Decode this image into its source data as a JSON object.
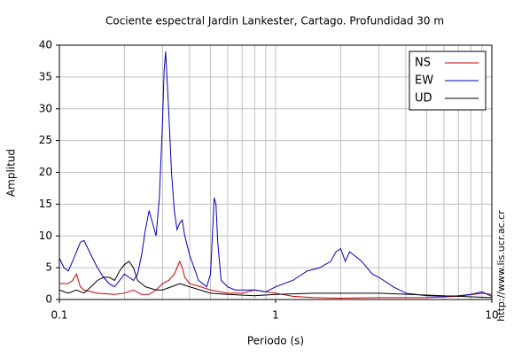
{
  "chart_data": {
    "type": "line",
    "title": "Cociente espectral Jardin Lankester, Cartago. Profundidad 30 m",
    "xlabel": "Periodo (s)",
    "ylabel": "Amplitud",
    "annotation": "http://www.lis.ucr.ac.cr",
    "xscale": "log",
    "grid": true,
    "legend": "upper right",
    "xlim": [
      0.1,
      10
    ],
    "xticks": [
      0.1,
      1,
      10
    ],
    "xminorticks": [
      0.2,
      0.3,
      0.4,
      0.5,
      0.6,
      0.7,
      0.8,
      0.9,
      2,
      3,
      4,
      5,
      6,
      7,
      8,
      9
    ],
    "ylim": [
      0,
      40
    ],
    "yticks": [
      0,
      5,
      10,
      15,
      20,
      25,
      30,
      35,
      40
    ],
    "series": [
      {
        "name": "NS",
        "color": "#cc0000",
        "x": [
          0.1,
          0.11,
          0.115,
          0.12,
          0.125,
          0.13,
          0.15,
          0.18,
          0.2,
          0.22,
          0.24,
          0.26,
          0.28,
          0.3,
          0.32,
          0.34,
          0.35,
          0.36,
          0.37,
          0.38,
          0.4,
          0.45,
          0.5,
          0.6,
          0.7,
          0.8,
          1,
          1.2,
          1.5,
          2,
          3,
          5,
          7,
          9,
          10
        ],
        "values": [
          2.5,
          2.5,
          3,
          4,
          2,
          1.5,
          1,
          0.8,
          1,
          1.5,
          0.8,
          0.8,
          1.5,
          2.5,
          3,
          4,
          5,
          6,
          5,
          3.5,
          2.5,
          2,
          1.5,
          1,
          1,
          1.5,
          1,
          0.5,
          0.3,
          0.2,
          0.3,
          0.3,
          0.5,
          1,
          0.8
        ]
      },
      {
        "name": "EW",
        "color": "#0000bb",
        "x": [
          0.1,
          0.105,
          0.11,
          0.115,
          0.12,
          0.125,
          0.13,
          0.14,
          0.15,
          0.16,
          0.17,
          0.18,
          0.19,
          0.2,
          0.21,
          0.22,
          0.23,
          0.24,
          0.25,
          0.26,
          0.27,
          0.28,
          0.29,
          0.3,
          0.305,
          0.31,
          0.32,
          0.33,
          0.34,
          0.35,
          0.36,
          0.37,
          0.38,
          0.4,
          0.42,
          0.44,
          0.46,
          0.48,
          0.5,
          0.51,
          0.52,
          0.53,
          0.54,
          0.56,
          0.6,
          0.65,
          0.7,
          0.8,
          0.9,
          1,
          1.2,
          1.4,
          1.6,
          1.8,
          1.9,
          2,
          2.1,
          2.2,
          2.3,
          2.5,
          2.8,
          3,
          3.5,
          4,
          5,
          6,
          7,
          8,
          9,
          10
        ],
        "values": [
          6.5,
          5,
          4.5,
          6,
          7.5,
          9,
          9.3,
          7,
          5,
          3.5,
          2.5,
          2,
          3,
          4,
          3.5,
          3,
          4,
          7,
          11,
          14,
          12,
          10,
          16,
          28,
          36,
          39,
          30,
          20,
          14,
          11,
          12,
          12.5,
          10,
          7,
          5,
          3,
          2.5,
          2,
          4,
          10,
          16,
          15,
          9,
          3,
          2,
          1.5,
          1.5,
          1.5,
          1.2,
          2,
          3,
          4.5,
          5,
          6,
          7.5,
          8,
          6,
          7.5,
          7,
          6,
          4,
          3.5,
          2,
          1,
          0.6,
          0.5,
          0.6,
          0.8,
          1.2,
          0.5
        ]
      },
      {
        "name": "UD",
        "color": "#000000",
        "x": [
          0.1,
          0.11,
          0.12,
          0.13,
          0.14,
          0.15,
          0.16,
          0.17,
          0.18,
          0.19,
          0.2,
          0.21,
          0.22,
          0.23,
          0.25,
          0.28,
          0.3,
          0.33,
          0.36,
          0.4,
          0.5,
          0.6,
          0.8,
          1,
          1.5,
          2,
          3,
          5,
          7,
          10
        ],
        "values": [
          1.5,
          1,
          1.5,
          1,
          2,
          3,
          3.5,
          3.5,
          3,
          4.5,
          5.5,
          6,
          5,
          3,
          2,
          1.5,
          1.5,
          2,
          2.5,
          2,
          1,
          0.8,
          0.6,
          0.8,
          1,
          1,
          1,
          0.7,
          0.5,
          0.3
        ]
      }
    ]
  }
}
